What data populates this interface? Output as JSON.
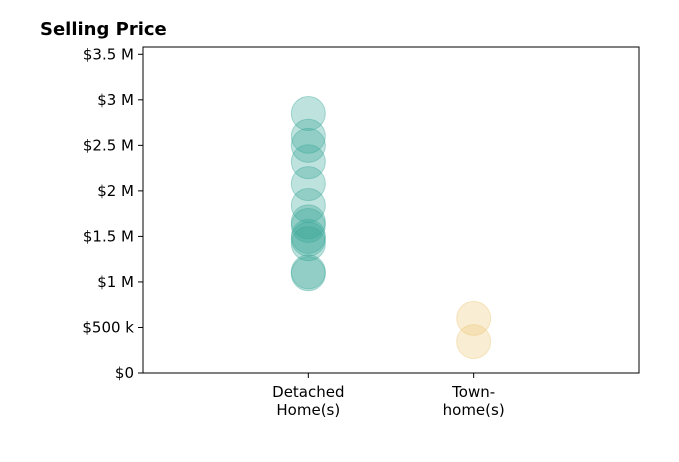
{
  "chart_data": {
    "type": "scatter",
    "title": "Selling Price",
    "xlabel": "",
    "ylabel": "",
    "categories": [
      {
        "label_lines": [
          "Detached",
          "Home(s)"
        ],
        "color": "#3aa898"
      },
      {
        "label_lines": [
          "Town-",
          "home(s)"
        ],
        "color": "#ecc978"
      }
    ],
    "y_ticks": [
      {
        "value": 0,
        "label": "$0"
      },
      {
        "value": 500000,
        "label": "$500 k"
      },
      {
        "value": 1000000,
        "label": "$1 M"
      },
      {
        "value": 1500000,
        "label": "$1.5 M"
      },
      {
        "value": 2000000,
        "label": "$2 M"
      },
      {
        "value": 2500000,
        "label": "$2.5 M"
      },
      {
        "value": 3000000,
        "label": "$3 M"
      },
      {
        "value": 3500000,
        "label": "$3.5 M"
      }
    ],
    "ylim": [
      0,
      3580000
    ],
    "xlim": [
      -1,
      2
    ],
    "grid": false,
    "series": [
      {
        "category": 0,
        "values": [
          2850000,
          2600000,
          2500000,
          2320000,
          2080000,
          1840000,
          1660000,
          1620000,
          1500000,
          1470000,
          1420000,
          1110000,
          1090000
        ]
      },
      {
        "category": 1,
        "values": [
          600000,
          345000
        ]
      }
    ]
  }
}
